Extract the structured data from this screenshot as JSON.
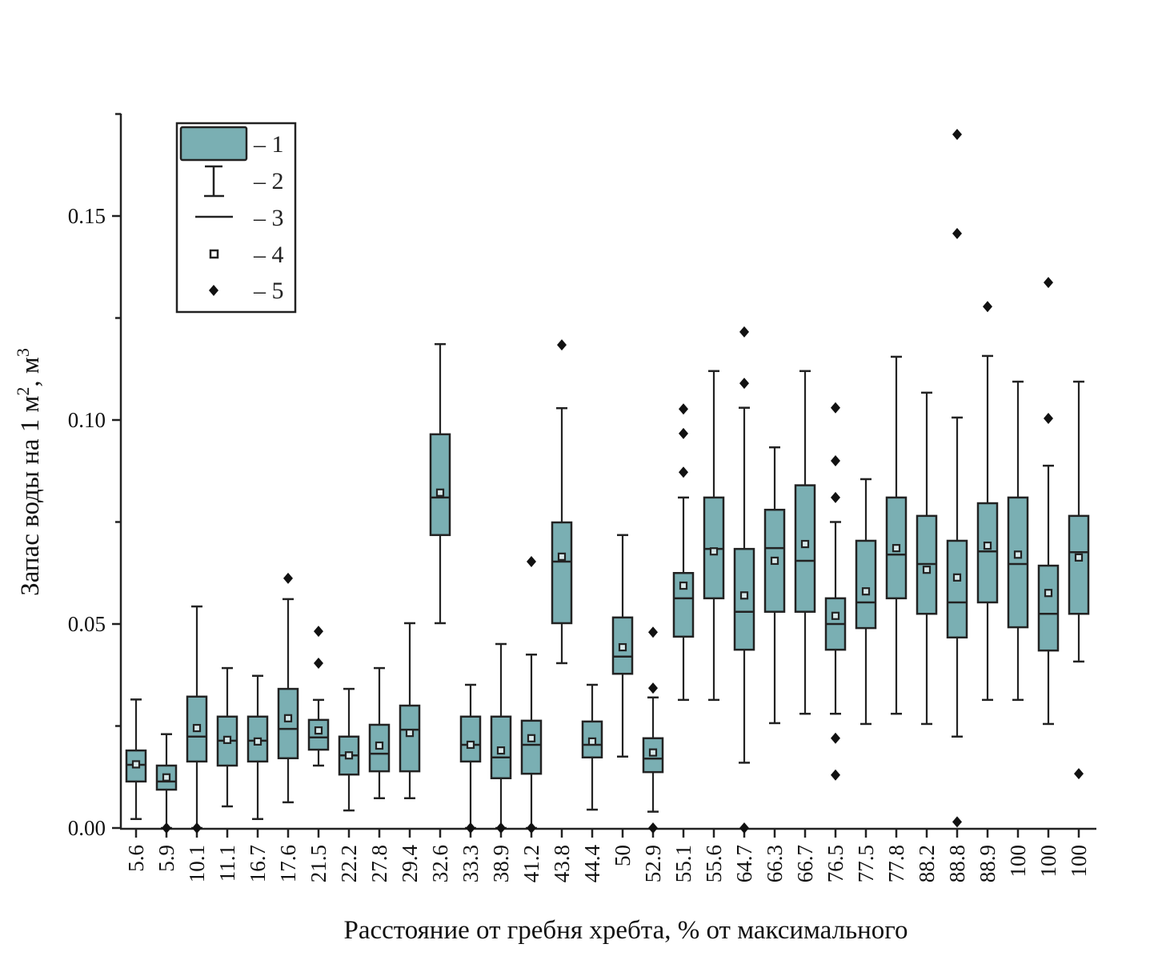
{
  "chart_data": {
    "type": "box",
    "title": "",
    "xlabel": "Расстояние от гребня хребта, % от максимального",
    "ylabel": "Запас воды на 1 м², м³",
    "ylabel_parts": {
      "text": "Запас воды на 1 м",
      "sup1": "2",
      "mid": ", м",
      "sup2": "3"
    },
    "ylim": [
      0,
      0.175
    ],
    "yticks": [
      0.0,
      0.05,
      0.1,
      0.15
    ],
    "ytick_labels": [
      "0.00",
      "0.05",
      "0.10",
      "0.15"
    ],
    "yminor_ticks": [
      0.025,
      0.075,
      0.125,
      0.175
    ],
    "grid": false,
    "legend_position": "top-left",
    "legend": [
      {
        "symbol": "box",
        "label": "1"
      },
      {
        "symbol": "whisker",
        "label": "2"
      },
      {
        "symbol": "median-line",
        "label": "3"
      },
      {
        "symbol": "mean-square",
        "label": "4"
      },
      {
        "symbol": "outlier-diamond",
        "label": "5"
      }
    ],
    "colors": {
      "box_fill": "#7aafb3",
      "stroke": "#222222",
      "outlier": "#111111"
    },
    "categories": [
      "5.6",
      "5.9",
      "10.1",
      "11.1",
      "16.7",
      "17.6",
      "21.5",
      "22.2",
      "27.8",
      "29.4",
      "32.6",
      "33.3",
      "38.9",
      "41.2",
      "43.8",
      "44.4",
      "50",
      "52.9",
      "55.1",
      "55.6",
      "64.7",
      "66.3",
      "66.7",
      "76.5",
      "77.5",
      "77.8",
      "88.2",
      "88.8",
      "88.9",
      "100",
      "100",
      "100"
    ],
    "boxes": [
      {
        "low": 0.0022,
        "q1": 0.0114,
        "median": 0.0155,
        "mean": 0.0156,
        "q3": 0.019,
        "high": 0.0315,
        "outliers": []
      },
      {
        "low": 0.0,
        "q1": 0.0094,
        "median": 0.0114,
        "mean": 0.0124,
        "q3": 0.0153,
        "high": 0.023,
        "outliers": [
          0.0
        ]
      },
      {
        "low": 0.0,
        "q1": 0.0163,
        "median": 0.0224,
        "mean": 0.0245,
        "q3": 0.0322,
        "high": 0.0543,
        "outliers": [
          0.0
        ]
      },
      {
        "low": 0.0053,
        "q1": 0.0153,
        "median": 0.0214,
        "mean": 0.0216,
        "q3": 0.0273,
        "high": 0.0392,
        "outliers": []
      },
      {
        "low": 0.0022,
        "q1": 0.0163,
        "median": 0.0214,
        "mean": 0.0212,
        "q3": 0.0273,
        "high": 0.0373,
        "outliers": []
      },
      {
        "low": 0.0063,
        "q1": 0.0171,
        "median": 0.0243,
        "mean": 0.0269,
        "q3": 0.0341,
        "high": 0.0561,
        "outliers": [
          0.0612
        ]
      },
      {
        "low": 0.0153,
        "q1": 0.0192,
        "median": 0.0222,
        "mean": 0.0239,
        "q3": 0.0265,
        "high": 0.0314,
        "outliers": [
          0.0404,
          0.0482
        ]
      },
      {
        "low": 0.0043,
        "q1": 0.0131,
        "median": 0.0178,
        "mean": 0.0178,
        "q3": 0.0224,
        "high": 0.0341,
        "outliers": []
      },
      {
        "low": 0.0073,
        "q1": 0.0139,
        "median": 0.0182,
        "mean": 0.0202,
        "q3": 0.0253,
        "high": 0.0392,
        "outliers": []
      },
      {
        "low": 0.0073,
        "q1": 0.0139,
        "median": 0.0241,
        "mean": 0.0233,
        "q3": 0.03,
        "high": 0.0502,
        "outliers": []
      },
      {
        "low": 0.0502,
        "q1": 0.0718,
        "median": 0.081,
        "mean": 0.0822,
        "q3": 0.0965,
        "high": 0.1186,
        "outliers": []
      },
      {
        "low": 0.0,
        "q1": 0.0163,
        "median": 0.0204,
        "mean": 0.0204,
        "q3": 0.0273,
        "high": 0.0351,
        "outliers": [
          0.0
        ]
      },
      {
        "low": 0.0,
        "q1": 0.0122,
        "median": 0.0173,
        "mean": 0.019,
        "q3": 0.0273,
        "high": 0.0451,
        "outliers": [
          0.0
        ]
      },
      {
        "low": 0.0,
        "q1": 0.0133,
        "median": 0.0204,
        "mean": 0.022,
        "q3": 0.0263,
        "high": 0.0425,
        "outliers": [
          0.0653,
          0.0
        ]
      },
      {
        "low": 0.0404,
        "q1": 0.0502,
        "median": 0.0653,
        "mean": 0.0665,
        "q3": 0.0749,
        "high": 0.1029,
        "outliers": [
          0.1184
        ]
      },
      {
        "low": 0.0045,
        "q1": 0.0173,
        "median": 0.0204,
        "mean": 0.0212,
        "q3": 0.0261,
        "high": 0.0351,
        "outliers": []
      },
      {
        "low": 0.0175,
        "q1": 0.0378,
        "median": 0.042,
        "mean": 0.0443,
        "q3": 0.0516,
        "high": 0.0718,
        "outliers": []
      },
      {
        "low": 0.004,
        "q1": 0.0137,
        "median": 0.017,
        "mean": 0.0185,
        "q3": 0.022,
        "high": 0.032,
        "outliers": [
          0.0343,
          0.048,
          0.0
        ]
      },
      {
        "low": 0.0314,
        "q1": 0.0469,
        "median": 0.0563,
        "mean": 0.0594,
        "q3": 0.0625,
        "high": 0.081,
        "outliers": [
          0.0872,
          0.0967,
          0.1027
        ]
      },
      {
        "low": 0.0314,
        "q1": 0.0563,
        "median": 0.0684,
        "mean": 0.0678,
        "q3": 0.081,
        "high": 0.112,
        "outliers": []
      },
      {
        "low": 0.016,
        "q1": 0.0437,
        "median": 0.053,
        "mean": 0.057,
        "q3": 0.0684,
        "high": 0.103,
        "outliers": [
          0.109,
          0.1216,
          0.0
        ]
      },
      {
        "low": 0.0257,
        "q1": 0.053,
        "median": 0.0686,
        "mean": 0.0655,
        "q3": 0.078,
        "high": 0.0933,
        "outliers": []
      },
      {
        "low": 0.028,
        "q1": 0.053,
        "median": 0.0655,
        "mean": 0.0696,
        "q3": 0.084,
        "high": 0.112,
        "outliers": []
      },
      {
        "low": 0.028,
        "q1": 0.0437,
        "median": 0.05,
        "mean": 0.052,
        "q3": 0.0563,
        "high": 0.075,
        "outliers": [
          0.081,
          0.09,
          0.103,
          0.022,
          0.013
        ]
      },
      {
        "low": 0.0255,
        "q1": 0.049,
        "median": 0.0553,
        "mean": 0.058,
        "q3": 0.0704,
        "high": 0.0855,
        "outliers": []
      },
      {
        "low": 0.028,
        "q1": 0.0563,
        "median": 0.067,
        "mean": 0.0686,
        "q3": 0.081,
        "high": 0.1155,
        "outliers": []
      },
      {
        "low": 0.0255,
        "q1": 0.0525,
        "median": 0.0647,
        "mean": 0.0633,
        "q3": 0.0765,
        "high": 0.1067,
        "outliers": []
      },
      {
        "low": 0.0224,
        "q1": 0.0467,
        "median": 0.0553,
        "mean": 0.0614,
        "q3": 0.0704,
        "high": 0.1006,
        "outliers": [
          0.1457,
          0.17,
          0.0015
        ]
      },
      {
        "low": 0.0314,
        "q1": 0.0553,
        "median": 0.0678,
        "mean": 0.0692,
        "q3": 0.0796,
        "high": 0.1157,
        "outliers": [
          0.1278
        ]
      },
      {
        "low": 0.0314,
        "q1": 0.0492,
        "median": 0.0647,
        "mean": 0.067,
        "q3": 0.081,
        "high": 0.1094,
        "outliers": []
      },
      {
        "low": 0.0255,
        "q1": 0.0435,
        "median": 0.0525,
        "mean": 0.0576,
        "q3": 0.0643,
        "high": 0.0888,
        "outliers": [
          0.1004,
          0.1337
        ]
      },
      {
        "low": 0.0408,
        "q1": 0.0525,
        "median": 0.0676,
        "mean": 0.0663,
        "q3": 0.0765,
        "high": 0.1094,
        "outliers": [
          0.0133
        ]
      }
    ]
  }
}
